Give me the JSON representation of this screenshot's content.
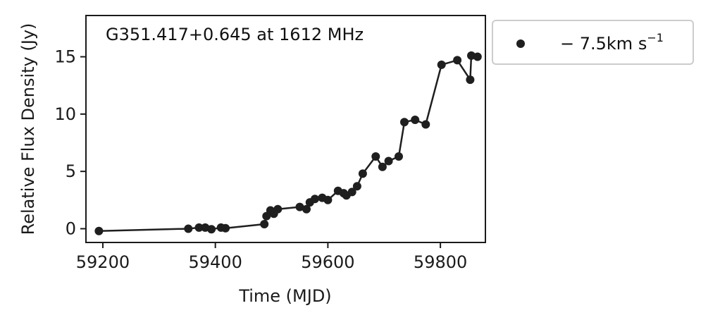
{
  "chart_data": {
    "type": "line",
    "annotation": "G351.417+0.645 at 1612 MHz",
    "xlabel": "Time (MJD)",
    "ylabel": "Relative Flux Density (Jy)",
    "xlim": [
      59170,
      59880
    ],
    "ylim": [
      -1.2,
      18.6
    ],
    "xticks": [
      59200,
      59400,
      59600,
      59800
    ],
    "xtick_labels": [
      "59200",
      "59400",
      "59600",
      "59800"
    ],
    "yticks": [
      0,
      5,
      10,
      15
    ],
    "ytick_labels": [
      "0",
      "5",
      "10",
      "15"
    ],
    "grid": false,
    "legend_position": "outside-upper-right",
    "series": [
      {
        "legend_prefix": "− 7.5km s",
        "legend_superscript": "−1",
        "color": "#1f1f1f",
        "marker": "circle",
        "points": [
          [
            59193,
            -0.2
          ],
          [
            59352,
            0.0
          ],
          [
            59371,
            0.1
          ],
          [
            59382,
            0.1
          ],
          [
            59393,
            -0.05
          ],
          [
            59410,
            0.1
          ],
          [
            59418,
            0.05
          ],
          [
            59487,
            0.4
          ],
          [
            59491,
            1.1
          ],
          [
            59498,
            1.6
          ],
          [
            59504,
            1.3
          ],
          [
            59511,
            1.7
          ],
          [
            59550,
            1.9
          ],
          [
            59562,
            1.7
          ],
          [
            59568,
            2.3
          ],
          [
            59577,
            2.6
          ],
          [
            59590,
            2.7
          ],
          [
            59600,
            2.5
          ],
          [
            59618,
            3.3
          ],
          [
            59628,
            3.1
          ],
          [
            59633,
            2.9
          ],
          [
            59643,
            3.2
          ],
          [
            59652,
            3.7
          ],
          [
            59662,
            4.8
          ],
          [
            59685,
            6.3
          ],
          [
            59697,
            5.4
          ],
          [
            59708,
            5.9
          ],
          [
            59726,
            6.3
          ],
          [
            59736,
            9.3
          ],
          [
            59755,
            9.5
          ],
          [
            59774,
            9.1
          ],
          [
            59802,
            14.3
          ],
          [
            59830,
            14.7
          ],
          [
            59853,
            13.0
          ],
          [
            59855,
            15.1
          ],
          [
            59866,
            15.0
          ]
        ]
      }
    ]
  }
}
